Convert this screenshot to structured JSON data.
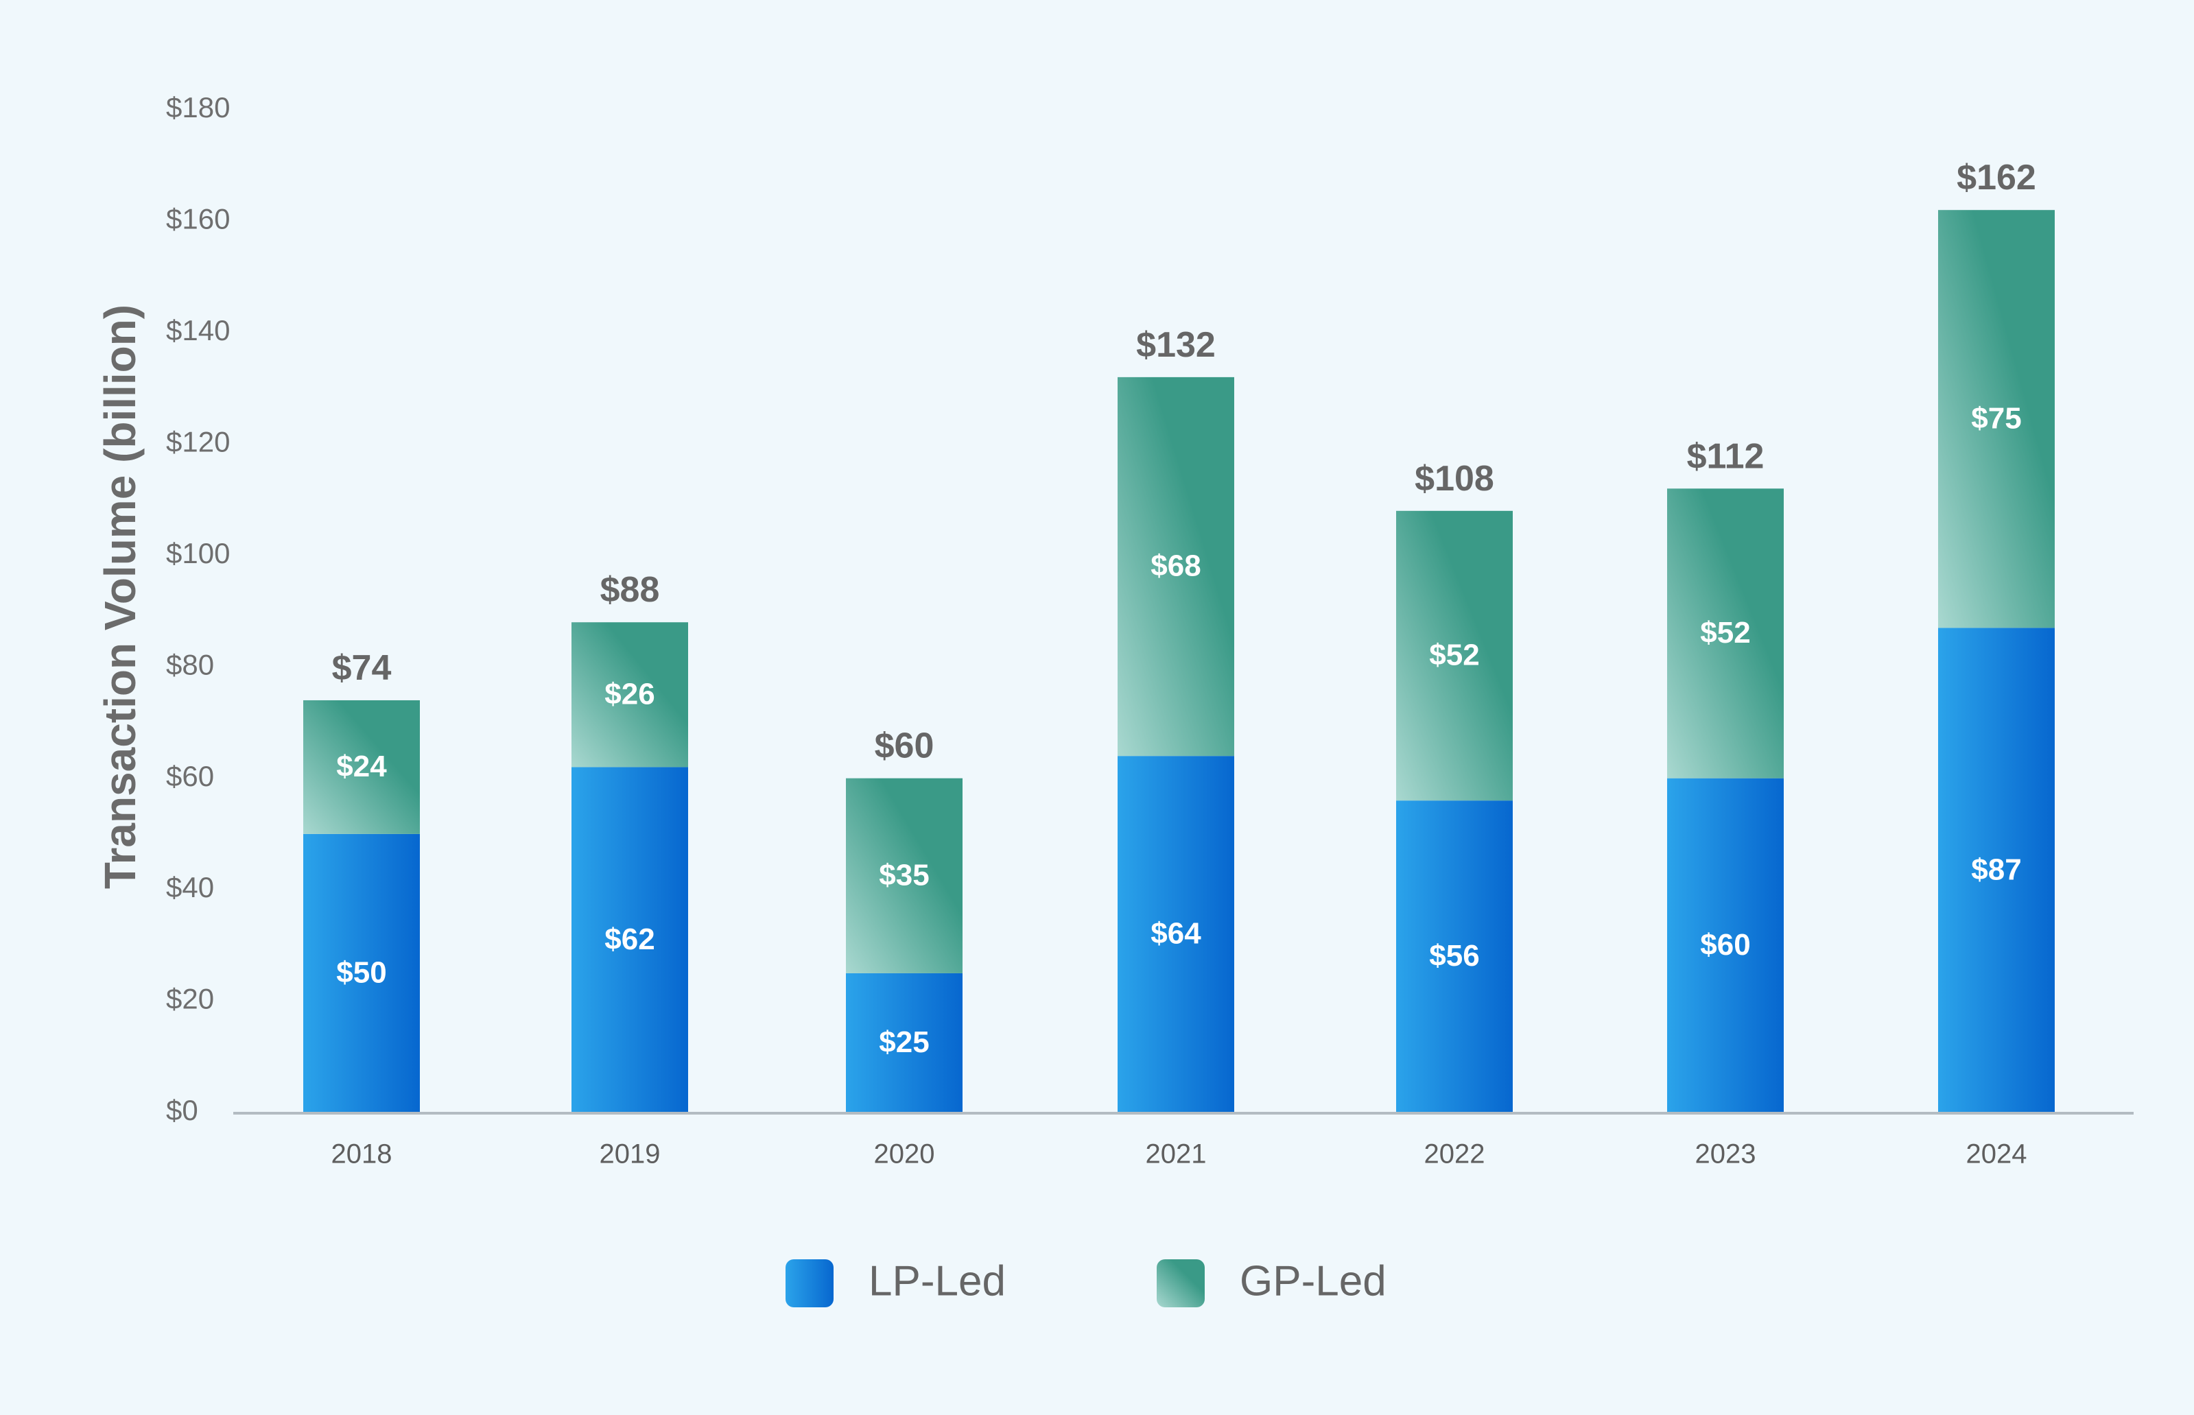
{
  "chart_data": {
    "type": "bar",
    "stacked": true,
    "title": "",
    "xlabel": "",
    "ylabel": "Transaction Volume (billion)",
    "ylim": [
      0,
      180
    ],
    "yticks": [
      0,
      20,
      40,
      60,
      80,
      100,
      120,
      140,
      160,
      180
    ],
    "ytick_labels": [
      "$0",
      "$20",
      "$40",
      "$60",
      "$80",
      "$100",
      "$120",
      "$140",
      "$160",
      "$180"
    ],
    "categories": [
      "2018",
      "2019",
      "2020",
      "2021",
      "2022",
      "2023",
      "2024"
    ],
    "series": [
      {
        "name": "LP-Led",
        "values": [
          50,
          62,
          25,
          64,
          56,
          60,
          87
        ],
        "labels": [
          "$50",
          "$62",
          "$25",
          "$64",
          "$56",
          "$60",
          "$87"
        ],
        "color_start": "#2ba3ea",
        "color_end": "#0767cf"
      },
      {
        "name": "GP-Led",
        "values": [
          24,
          26,
          35,
          68,
          52,
          52,
          75
        ],
        "labels": [
          "$24",
          "$26",
          "$35",
          "$68",
          "$52",
          "$52",
          "$75"
        ],
        "color_start": "#a9d8d0",
        "color_end": "#3a9a87"
      }
    ],
    "totals": [
      74,
      88,
      60,
      132,
      108,
      112,
      162
    ],
    "total_labels": [
      "$74",
      "$88",
      "$60",
      "$132",
      "$108",
      "$112",
      "$162"
    ],
    "grid": false,
    "legend_position": "bottom-center"
  }
}
